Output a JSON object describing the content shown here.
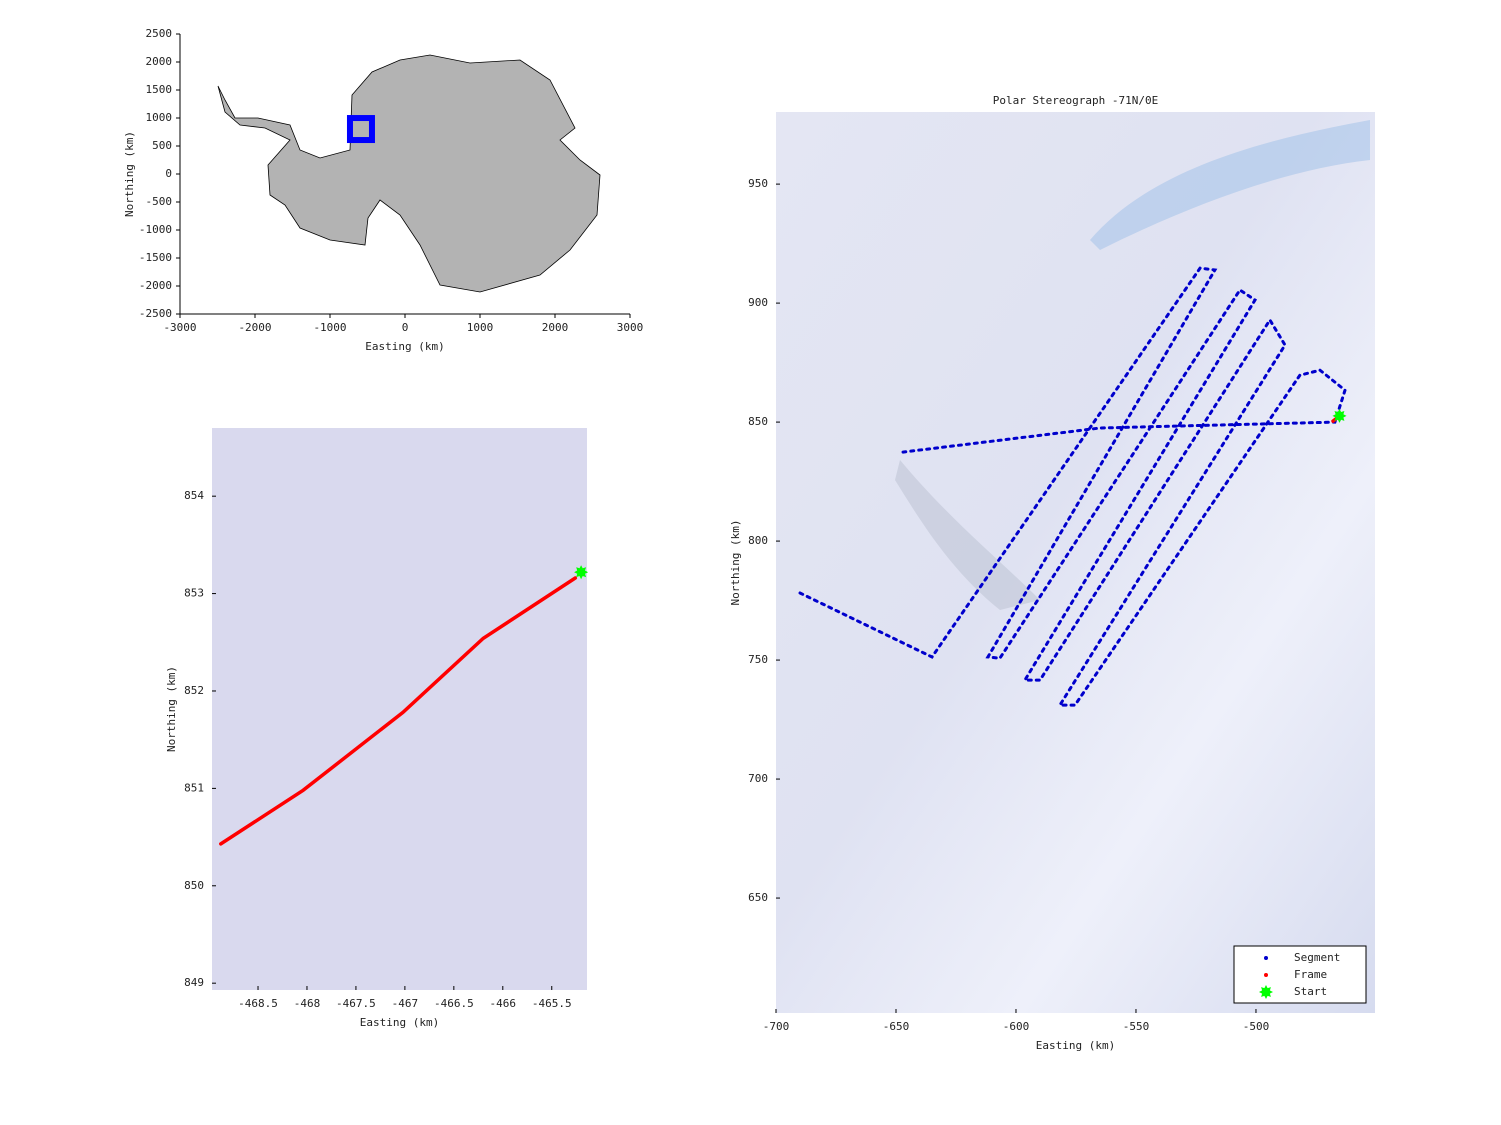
{
  "chart_data": [
    {
      "type": "line",
      "xlabel": "Easting (km)",
      "ylabel": "Northing (km)",
      "xlim": [
        -3000,
        3000
      ],
      "ylim": [
        -2500,
        2500
      ],
      "xticks": [
        -3000,
        -2000,
        -1000,
        0,
        1000,
        2000,
        3000
      ],
      "yticks": [
        -2500,
        -2000,
        -1500,
        -1000,
        -500,
        0,
        500,
        1000,
        1500,
        2000,
        2500
      ],
      "series": [
        {
          "color": "#0000ff",
          "marker": "square",
          "x": [
            -587
          ],
          "values": [
            803
          ]
        }
      ]
    },
    {
      "type": "line",
      "xlabel": "Easting (km)",
      "ylabel": "Northing (km)",
      "xlim": [
        -468.97,
        -465.14
      ],
      "ylim": [
        848.93,
        854.7
      ],
      "xticks": [
        -468.5,
        -468,
        -467.5,
        -467,
        -466.5,
        -466,
        -465.5
      ],
      "yticks": [
        849,
        850,
        851,
        852,
        853,
        854
      ],
      "series": [
        {
          "color": "#ff0000",
          "marker": "line",
          "x": [
            -468.88,
            -468.04,
            -467.02,
            -466.2,
            -465.26
          ],
          "values": [
            850.43,
            850.98,
            851.78,
            852.54,
            853.16
          ]
        },
        {
          "color": "#00ff00",
          "marker": "star",
          "x": [
            -465.2
          ],
          "values": [
            853.22
          ]
        }
      ]
    },
    {
      "type": "line",
      "title": "Polar Stereograph -71N/0E",
      "xlabel": "Easting (km)",
      "ylabel": "Northing (km)",
      "xlim": [
        -700,
        -450.4
      ],
      "ylim": [
        601.7,
        980.3
      ],
      "xticks": [
        -700,
        -650,
        -600,
        -550,
        -500
      ],
      "yticks": [
        650,
        700,
        750,
        800,
        850,
        900,
        950
      ],
      "legend": "lower right",
      "series": [
        {
          "name": "Segment",
          "color": "#0000cc",
          "marker": "dots",
          "x": [
            -690,
            -635,
            -523.3,
            -517.1,
            -611.7,
            -606.7,
            -506.7,
            -500.4,
            -596.3,
            -590,
            -494.2,
            -487.9,
            -581.7,
            -575.4,
            -481.7,
            -473.3,
            -462.9,
            -467.1,
            -565,
            -647.1
          ],
          "values": [
            778.2,
            751.3,
            914.7,
            913.9,
            751.3,
            750.8,
            905.5,
            901.3,
            741.6,
            741.6,
            892.9,
            882.4,
            731.1,
            731.1,
            869.7,
            871.8,
            863.4,
            850.0,
            847.5,
            837.4
          ]
        },
        {
          "name": "Frame",
          "color": "#ff0000",
          "marker": "line",
          "x": [
            -467.9,
            -465.2
          ],
          "values": [
            850.4,
            852.5
          ]
        },
        {
          "name": "Start",
          "color": "#00ff00",
          "marker": "star",
          "x": [
            -465.2
          ],
          "values": [
            852.6
          ]
        }
      ]
    }
  ]
}
